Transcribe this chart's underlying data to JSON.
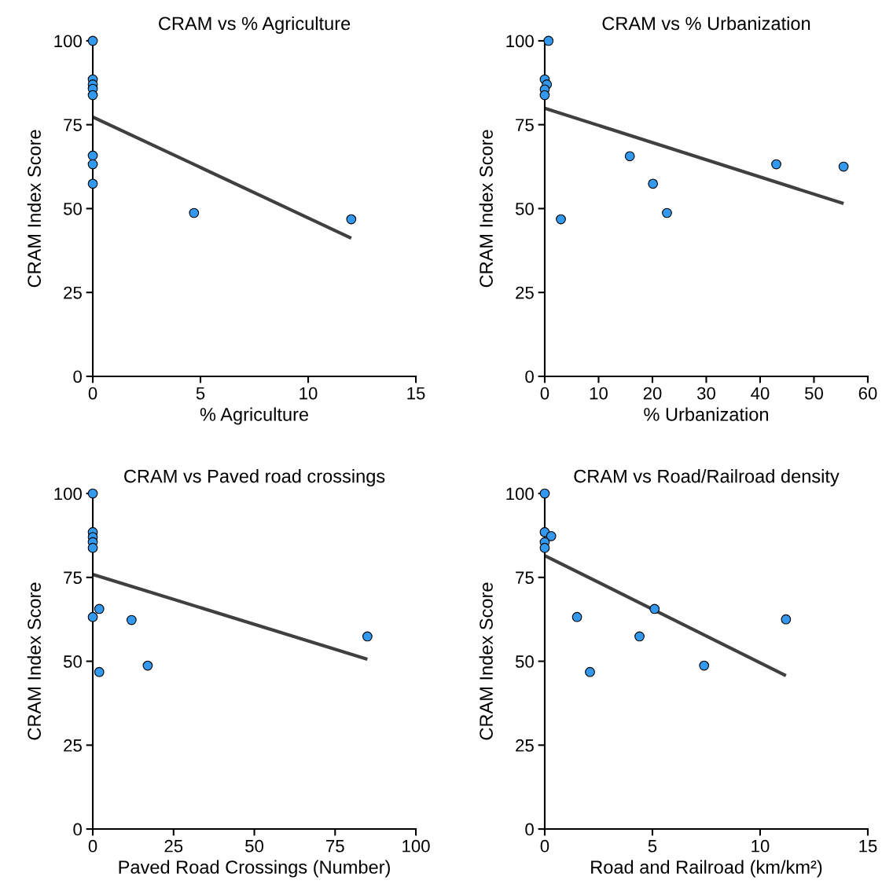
{
  "chart_data": [
    {
      "type": "scatter",
      "title": "CRAM vs % Agriculture",
      "xlabel": "% Agriculture",
      "ylabel": "CRAM Index Score",
      "xlim": [
        0,
        15
      ],
      "xticks": [
        0,
        5,
        10,
        15
      ],
      "ylim": [
        0,
        100
      ],
      "yticks": [
        0,
        25,
        50,
        75,
        100
      ],
      "series": [
        {
          "color": "#3399ee",
          "marker": "circle",
          "x": [
            0,
            0,
            0,
            0,
            0,
            0,
            0,
            0,
            4.7,
            12.0
          ],
          "values": [
            100,
            88.5,
            87,
            85.7,
            83.8,
            65.8,
            63.2,
            57.4,
            48.7,
            46.8
          ]
        },
        {
          "type": "line",
          "color": "#404040",
          "marker": "none",
          "line_style": "solid",
          "x": [
            0,
            12.0
          ],
          "values": [
            77.3,
            41.2
          ]
        }
      ]
    },
    {
      "type": "scatter",
      "title": "CRAM vs % Urbanization",
      "xlabel": "% Urbanization",
      "ylabel": "CRAM Index Score",
      "xlim": [
        0,
        60
      ],
      "xticks": [
        0,
        10,
        20,
        30,
        40,
        50,
        60
      ],
      "ylim": [
        0,
        100
      ],
      "yticks": [
        0,
        25,
        50,
        75,
        100
      ],
      "series": [
        {
          "color": "#3399ee",
          "marker": "circle",
          "x": [
            0.7,
            0,
            0.4,
            0,
            0,
            15.8,
            20.1,
            22.7,
            3.0,
            43.0,
            55.5
          ],
          "values": [
            100,
            88.5,
            87,
            85.5,
            83.8,
            65.6,
            57.4,
            48.7,
            46.8,
            63.2,
            62.5
          ]
        },
        {
          "type": "line",
          "color": "#404040",
          "marker": "none",
          "line_style": "solid",
          "x": [
            0,
            55.5
          ],
          "values": [
            79.9,
            51.5
          ]
        }
      ]
    },
    {
      "type": "scatter",
      "title": "CRAM vs Paved road crossings",
      "xlabel": "Paved Road Crossings (Number)",
      "ylabel": "CRAM Index Score",
      "xlim": [
        0,
        100
      ],
      "xticks": [
        0,
        25,
        50,
        75,
        100
      ],
      "ylim": [
        0,
        100
      ],
      "yticks": [
        0,
        25,
        50,
        75,
        100
      ],
      "series": [
        {
          "color": "#3399ee",
          "marker": "circle",
          "x": [
            0,
            0,
            0,
            0,
            0,
            0,
            2,
            12,
            2,
            17,
            85
          ],
          "values": [
            100,
            88.5,
            87,
            85.5,
            83.8,
            63.2,
            65.6,
            62.3,
            46.8,
            48.7,
            57.4
          ]
        },
        {
          "type": "line",
          "color": "#404040",
          "marker": "none",
          "line_style": "solid",
          "x": [
            0,
            85
          ],
          "values": [
            75.9,
            50.6
          ]
        }
      ]
    },
    {
      "type": "scatter",
      "title": "CRAM vs Road/Railroad density",
      "xlabel": "Road and Railroad (km/km²)",
      "ylabel": "CRAM Index Score",
      "xlim": [
        0,
        15
      ],
      "xticks": [
        0,
        5,
        10,
        15
      ],
      "ylim": [
        0,
        100
      ],
      "yticks": [
        0,
        25,
        50,
        75,
        100
      ],
      "series": [
        {
          "color": "#3399ee",
          "marker": "circle",
          "x": [
            0,
            0,
            0.3,
            0,
            0,
            1.5,
            2.1,
            4.4,
            5.1,
            7.4,
            11.2
          ],
          "values": [
            100,
            88.5,
            87.3,
            85.5,
            83.8,
            63.2,
            46.8,
            57.4,
            65.6,
            48.7,
            62.5
          ]
        },
        {
          "type": "line",
          "color": "#404040",
          "marker": "none",
          "line_style": "solid",
          "x": [
            0,
            11.2
          ],
          "values": [
            81.5,
            45.7
          ]
        }
      ]
    }
  ]
}
